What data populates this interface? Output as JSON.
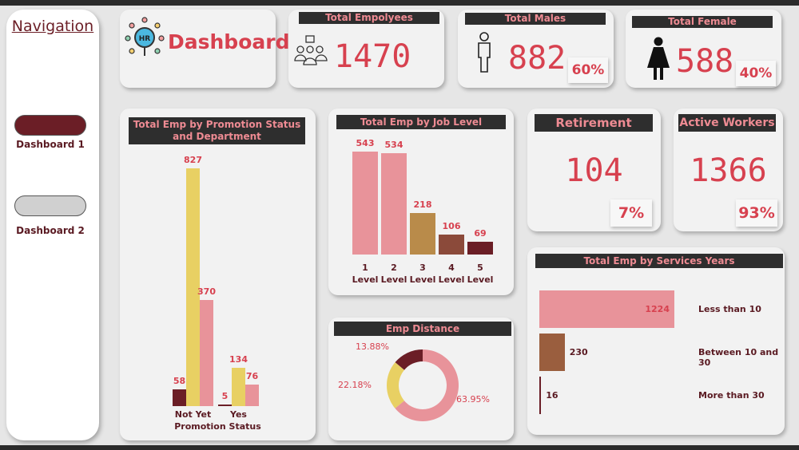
{
  "nav": {
    "title": "Navigation",
    "buttons": [
      {
        "label": "Dashboard 1",
        "active": true
      },
      {
        "label": "Dashboard 2",
        "active": false
      }
    ]
  },
  "header": {
    "title": "Dashboard",
    "logo_text": "HR"
  },
  "kpis": {
    "total_employees": {
      "label": "Total Empolyees",
      "value": "1470"
    },
    "total_males": {
      "label": "Total Males",
      "value": "882",
      "pct": "60%"
    },
    "total_female": {
      "label": "Total Female",
      "value": "588",
      "pct": "40%"
    },
    "retirement": {
      "label": "Retirement",
      "value": "104",
      "pct": "7%"
    },
    "active": {
      "label": "Active Workers",
      "value": "1366",
      "pct": "93%"
    }
  },
  "colors": {
    "accent": "#d7414f",
    "dark_red": "#6b1e26",
    "yellow": "#e8d063",
    "pink": "#e8939a",
    "brown": "#b98b4a",
    "header_bg": "#2e2e2e"
  },
  "chart_data": [
    {
      "type": "bar",
      "title": "Total Emp by Promotion Status and Department",
      "xlabel": "Promotion Status",
      "categories": [
        "Not Yet",
        "Yes"
      ],
      "series": [
        {
          "values": [
            58,
            5
          ],
          "color": "#6b1e26"
        },
        {
          "values": [
            827,
            134
          ],
          "color": "#e8d063"
        },
        {
          "values": [
            370,
            76
          ],
          "color": "#e8939a"
        }
      ]
    },
    {
      "type": "bar",
      "title": "Total Emp by Job Level",
      "categories": [
        "1 Level",
        "2 Level",
        "3 Level",
        "4 Level",
        "5 Level"
      ],
      "cat_top": [
        "1",
        "2",
        "3",
        "4",
        "5"
      ],
      "cat_bottom": [
        "Level",
        "Level",
        "Level",
        "Level",
        "Level"
      ],
      "values": [
        543,
        534,
        218,
        106,
        69
      ],
      "colors": [
        "#e8939a",
        "#e8939a",
        "#b98b4a",
        "#8b4a3a",
        "#6b1e26"
      ]
    },
    {
      "type": "pie",
      "title": "Emp Distance",
      "values": [
        63.95,
        22.18,
        13.88
      ],
      "labels": [
        "63.95%",
        "22.18%",
        "13.88%"
      ],
      "colors": [
        "#e8939a",
        "#e8d063",
        "#6b1e26"
      ]
    },
    {
      "type": "bar",
      "orientation": "horizontal",
      "title": "Total Emp by Services Years",
      "categories": [
        "Less than 10",
        "Between 10 and 30",
        "More than 30"
      ],
      "values": [
        1224,
        230,
        16
      ],
      "colors": [
        "#e8939a",
        "#9a5e3e",
        "#6b1e26"
      ]
    }
  ]
}
